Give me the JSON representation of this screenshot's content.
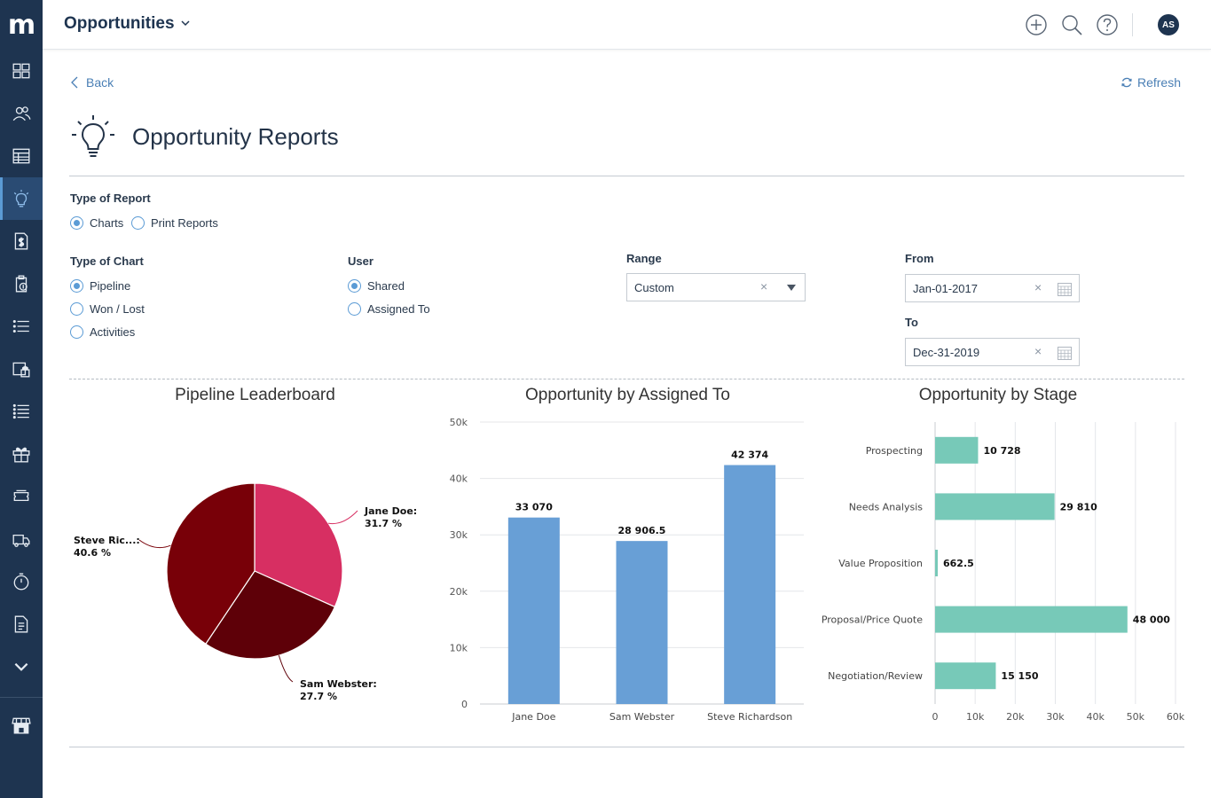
{
  "app": {
    "logo_text": "m",
    "page_title": "Opportunities",
    "user_initials": "AS"
  },
  "icons": {
    "logo": "m-logo",
    "sidebar": [
      "dashboard-icon",
      "contacts-icon",
      "table-icon",
      "lightbulb-icon",
      "document-dollar-icon",
      "clipboard-dollar-icon",
      "list-icon",
      "lock-box-icon",
      "list-alt-icon",
      "gift-icon",
      "ticket-icon",
      "truck-icon",
      "stopwatch-icon",
      "file-icon",
      "chevron-down-icon",
      "store-icon"
    ],
    "topbar": [
      "add-icon",
      "search-icon",
      "help-icon"
    ]
  },
  "nav": {
    "back_label": "Back",
    "refresh_label": "Refresh"
  },
  "report": {
    "title": "Opportunity Reports",
    "type_of_report_label": "Type of Report",
    "report_types": [
      {
        "label": "Charts",
        "selected": true
      },
      {
        "label": "Print Reports",
        "selected": false
      }
    ],
    "type_of_chart_label": "Type of Chart",
    "chart_types": [
      {
        "label": "Pipeline",
        "selected": true
      },
      {
        "label": "Won / Lost",
        "selected": false
      },
      {
        "label": "Activities",
        "selected": false
      }
    ],
    "user_label": "User",
    "user_options": [
      {
        "label": "Shared",
        "selected": true
      },
      {
        "label": "Assigned To",
        "selected": false
      }
    ],
    "range_label": "Range",
    "range_value": "Custom",
    "from_label": "From",
    "from_value": "Jan-01-2017",
    "to_label": "To",
    "to_value": "Dec-31-2019"
  },
  "colors": {
    "sidebar_bg": "#1e3450",
    "accent": "#5b9bd5",
    "bar_blue": "#689fd6",
    "bar_teal": "#77c9b8",
    "pie": [
      "#d72f62",
      "#5e0008",
      "#780008"
    ]
  },
  "chart_data": [
    {
      "type": "pie",
      "title": "Pipeline Leaderboard",
      "slices": [
        {
          "label": "Jane Doe:",
          "percent_label": "31.7 %",
          "value": 31.7
        },
        {
          "label": "Sam Webster:",
          "percent_label": "27.7 %",
          "value": 27.7
        },
        {
          "label": "Steve Ric...:",
          "percent_label": "40.6 %",
          "value": 40.6
        }
      ]
    },
    {
      "type": "bar",
      "title": "Opportunity by Assigned To",
      "categories": [
        "Jane Doe",
        "Sam Webster",
        "Steve Richardson"
      ],
      "values": [
        33070,
        28906.5,
        42374
      ],
      "value_labels": [
        "33 070",
        "28 906.5",
        "42 374"
      ],
      "ylim": [
        0,
        50000
      ],
      "yticks": [
        "0",
        "10k",
        "20k",
        "30k",
        "40k",
        "50k"
      ],
      "grid": true
    },
    {
      "type": "bar",
      "orientation": "horizontal",
      "title": "Opportunity by Stage",
      "categories": [
        "Prospecting",
        "Needs Analysis",
        "Value Proposition",
        "Proposal/Price Quote",
        "Negotiation/Review"
      ],
      "values": [
        10728,
        29810,
        662.5,
        48000,
        15150
      ],
      "value_labels": [
        "10 728",
        "29 810",
        "662.5",
        "48 000",
        "15 150"
      ],
      "xlim": [
        0,
        60000
      ],
      "xticks": [
        "0",
        "10k",
        "20k",
        "30k",
        "40k",
        "50k",
        "60k"
      ],
      "grid": true
    }
  ]
}
